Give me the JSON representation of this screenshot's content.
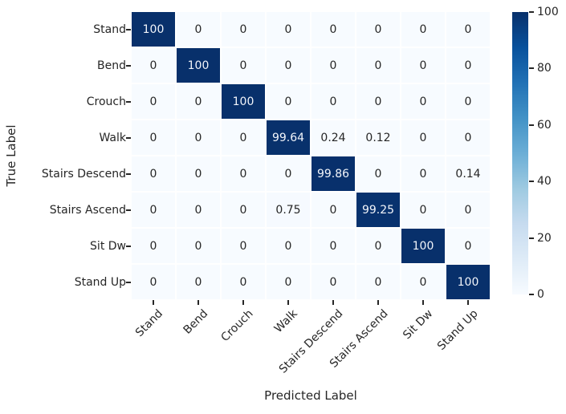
{
  "chart_data": {
    "type": "heatmap",
    "title": "",
    "xlabel": "Predicted Label",
    "ylabel": "True Label",
    "categories": [
      "Stand",
      "Bend",
      "Crouch",
      "Walk",
      "Stairs Descend",
      "Stairs Ascend",
      "Sit Dw",
      "Stand Up"
    ],
    "matrix": [
      [
        100,
        0,
        0,
        0,
        0,
        0,
        0,
        0
      ],
      [
        0,
        100,
        0,
        0,
        0,
        0,
        0,
        0
      ],
      [
        0,
        0,
        100,
        0,
        0,
        0,
        0,
        0
      ],
      [
        0,
        0,
        0,
        99.64,
        0.24,
        0.12,
        0,
        0
      ],
      [
        0,
        0,
        0,
        0,
        99.86,
        0,
        0,
        0.14
      ],
      [
        0,
        0,
        0,
        0.75,
        0,
        99.25,
        0,
        0
      ],
      [
        0,
        0,
        0,
        0,
        0,
        0,
        100,
        0
      ],
      [
        0,
        0,
        0,
        0,
        0,
        0,
        0,
        100
      ]
    ],
    "vmin": 0,
    "vmax": 100,
    "colorbar": {
      "position": "right",
      "ticks": [
        0,
        20,
        40,
        60,
        80,
        100
      ]
    },
    "colormap": {
      "name": "Blues",
      "stops": [
        "#f7fbff",
        "#deebf7",
        "#c6dbef",
        "#9ecae1",
        "#6baed6",
        "#4292c6",
        "#2171b5",
        "#08519c",
        "#08306b"
      ]
    },
    "colors": {
      "annot_on_dark": "#f2f5fa",
      "annot_on_light": "#262626",
      "tick": "#262626",
      "grid_line": "#ffffff",
      "background": "#ffffff"
    },
    "grid": true,
    "x_tick_rotation_deg": 45
  }
}
